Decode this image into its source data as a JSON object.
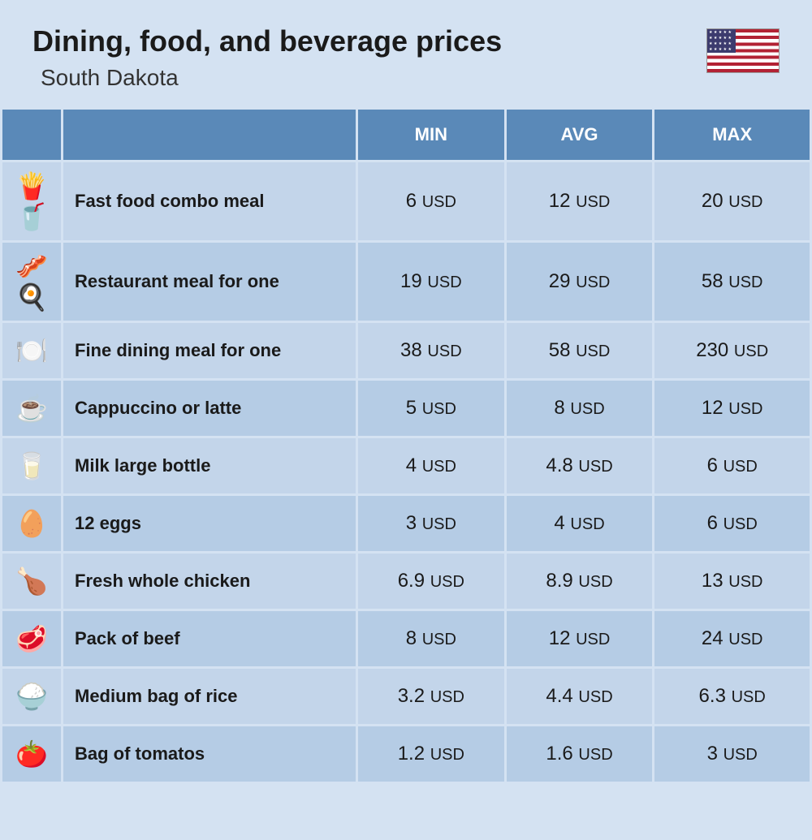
{
  "header": {
    "title": "Dining, food, and beverage prices",
    "subtitle": "South Dakota",
    "flag_name": "usa-flag"
  },
  "columns": {
    "min": "MIN",
    "avg": "AVG",
    "max": "MAX"
  },
  "currency": "USD",
  "rows": [
    {
      "icon": "🍟🥤",
      "name": "Fast food combo meal",
      "min": "6",
      "avg": "12",
      "max": "20"
    },
    {
      "icon": "🥓🍳",
      "name": "Restaurant meal for one",
      "min": "19",
      "avg": "29",
      "max": "58"
    },
    {
      "icon": "🍽️",
      "name": "Fine dining meal for one",
      "min": "38",
      "avg": "58",
      "max": "230"
    },
    {
      "icon": "☕",
      "name": "Cappuccino or latte",
      "min": "5",
      "avg": "8",
      "max": "12"
    },
    {
      "icon": "🥛",
      "name": "Milk large bottle",
      "min": "4",
      "avg": "4.8",
      "max": "6"
    },
    {
      "icon": "🥚",
      "name": "12 eggs",
      "min": "3",
      "avg": "4",
      "max": "6"
    },
    {
      "icon": "🍗",
      "name": "Fresh whole chicken",
      "min": "6.9",
      "avg": "8.9",
      "max": "13"
    },
    {
      "icon": "🥩",
      "name": "Pack of beef",
      "min": "8",
      "avg": "12",
      "max": "24"
    },
    {
      "icon": "🍚",
      "name": "Medium bag of rice",
      "min": "3.2",
      "avg": "4.4",
      "max": "6.3"
    },
    {
      "icon": "🍅",
      "name": "Bag of tomatos",
      "min": "1.2",
      "avg": "1.6",
      "max": "3"
    }
  ],
  "colors": {
    "page_bg": "#d4e2f2",
    "header_bg": "#5a89b8",
    "row_odd_bg": "#c3d5ea",
    "row_even_bg": "#b5cce5",
    "text": "#1a1a1a",
    "header_text": "#ffffff"
  }
}
